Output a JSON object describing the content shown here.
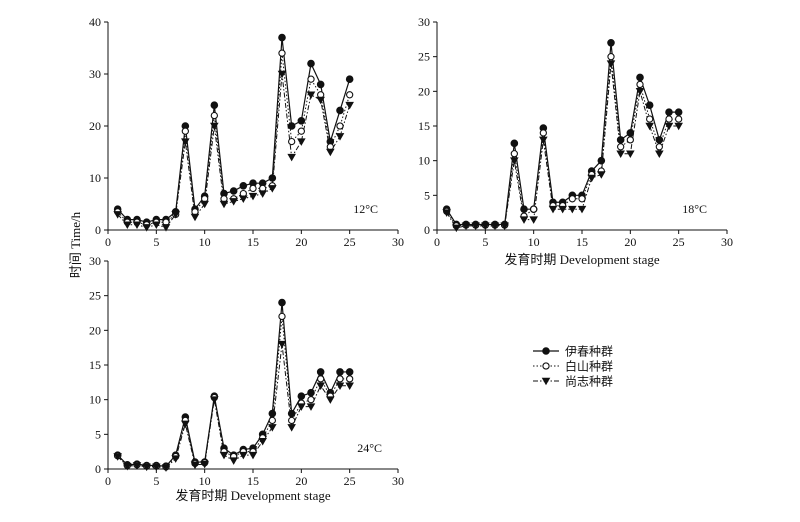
{
  "figure": {
    "ylabel": "时间 Time/h",
    "legend": {
      "placement": "center-right",
      "entries": [
        {
          "label": "伊春种群",
          "marker": "filled-circle",
          "line": "solid"
        },
        {
          "label": "白山种群",
          "marker": "open-circle",
          "line": "dotted"
        },
        {
          "label": "尚志种群",
          "marker": "filled-triangle-down",
          "line": "dash-dot"
        }
      ]
    },
    "colors": {
      "ink": "#111111",
      "background": "#ffffff"
    }
  },
  "chart_data": [
    {
      "type": "line",
      "annotation": "12°C",
      "xlabel": "",
      "xlim": [
        0,
        30
      ],
      "ylim": [
        0,
        40
      ],
      "xticks": [
        0,
        5,
        10,
        15,
        20,
        25,
        30
      ],
      "yticks": [
        0,
        10,
        20,
        30,
        40
      ],
      "x": [
        1,
        2,
        3,
        4,
        5,
        6,
        7,
        8,
        9,
        10,
        11,
        12,
        13,
        14,
        15,
        16,
        17,
        18,
        19,
        20,
        21,
        22,
        23,
        24,
        25
      ],
      "series": [
        {
          "name": "伊春种群",
          "values": [
            4,
            2,
            2,
            1.5,
            2,
            2,
            3.5,
            20,
            4,
            6.5,
            24,
            7,
            7.5,
            8.5,
            9,
            9,
            10,
            37,
            20,
            21,
            32,
            28,
            17,
            23,
            29
          ]
        },
        {
          "name": "白山种群",
          "values": [
            3.5,
            1.5,
            1.5,
            1,
            1.5,
            1.5,
            3,
            19,
            3.5,
            6,
            22,
            6,
            6,
            7,
            8,
            8,
            8.5,
            34,
            17,
            19,
            29,
            26,
            16,
            20,
            26
          ]
        },
        {
          "name": "尚志种群",
          "values": [
            3,
            1,
            1,
            0.5,
            1,
            0.5,
            3,
            17,
            2.5,
            5,
            20,
            5,
            5.5,
            6,
            6.5,
            7,
            8,
            30,
            14,
            17,
            26,
            25,
            15,
            18,
            24
          ]
        }
      ]
    },
    {
      "type": "line",
      "annotation": "18°C",
      "xlabel": "发育时期 Development stage",
      "xlim": [
        0,
        30
      ],
      "ylim": [
        0,
        30
      ],
      "xticks": [
        0,
        5,
        10,
        15,
        20,
        25,
        30
      ],
      "yticks": [
        0,
        5,
        10,
        15,
        20,
        25,
        30
      ],
      "x": [
        1,
        2,
        3,
        4,
        5,
        6,
        7,
        8,
        9,
        10,
        11,
        12,
        13,
        14,
        15,
        16,
        17,
        18,
        19,
        20,
        21,
        22,
        23,
        24,
        25
      ],
      "series": [
        {
          "name": "伊春种群",
          "values": [
            3,
            0.8,
            0.8,
            0.8,
            0.8,
            0.8,
            0.8,
            12.5,
            3,
            3,
            14.7,
            4,
            4,
            5,
            5,
            8.5,
            10,
            27,
            13,
            14,
            22,
            18,
            13,
            17,
            17
          ]
        },
        {
          "name": "白山种群",
          "values": [
            2.7,
            0.6,
            0.7,
            0.7,
            0.7,
            0.7,
            0.7,
            11,
            2,
            3,
            14,
            3.5,
            3.5,
            4.5,
            4.5,
            8,
            8.5,
            25,
            12,
            13,
            21,
            16,
            12,
            16,
            16
          ]
        },
        {
          "name": "尚志种群",
          "values": [
            2.5,
            0.3,
            0.6,
            0.6,
            0.6,
            0.6,
            0.6,
            10,
            1.5,
            1.5,
            13,
            3,
            3,
            3,
            3,
            7.5,
            8,
            24,
            11,
            11,
            20,
            15,
            11,
            15,
            15
          ]
        }
      ]
    },
    {
      "type": "line",
      "annotation": "24°C",
      "xlabel": "发育时期 Development stage",
      "xlim": [
        0,
        30
      ],
      "ylim": [
        0,
        30
      ],
      "xticks": [
        0,
        5,
        10,
        15,
        20,
        25,
        30
      ],
      "yticks": [
        0,
        5,
        10,
        15,
        20,
        25,
        30
      ],
      "x": [
        1,
        2,
        3,
        4,
        5,
        6,
        7,
        8,
        9,
        10,
        11,
        12,
        13,
        14,
        15,
        16,
        17,
        18,
        19,
        20,
        21,
        22,
        23,
        24,
        25
      ],
      "series": [
        {
          "name": "伊春种群",
          "values": [
            2,
            0.6,
            0.7,
            0.5,
            0.5,
            0.4,
            2,
            7.5,
            1,
            1,
            10.5,
            3,
            2,
            2.8,
            3,
            5,
            8,
            24,
            8,
            10.5,
            11,
            14,
            11,
            14,
            14
          ]
        },
        {
          "name": "白山种群",
          "values": [
            1.9,
            0.5,
            0.6,
            0.4,
            0.4,
            0.3,
            1.8,
            7,
            0.8,
            0.9,
            10.3,
            2.5,
            1.8,
            2.5,
            2.5,
            4.5,
            7,
            22,
            7,
            9.5,
            10,
            13,
            10.5,
            13,
            13
          ]
        },
        {
          "name": "尚志种群",
          "values": [
            1.8,
            0.4,
            0.5,
            0.3,
            0.3,
            0.2,
            1.5,
            6.5,
            0.6,
            0.7,
            10,
            2,
            1.2,
            2,
            2,
            4,
            6,
            18,
            6,
            9,
            9,
            12,
            10,
            12,
            12
          ]
        }
      ]
    }
  ]
}
